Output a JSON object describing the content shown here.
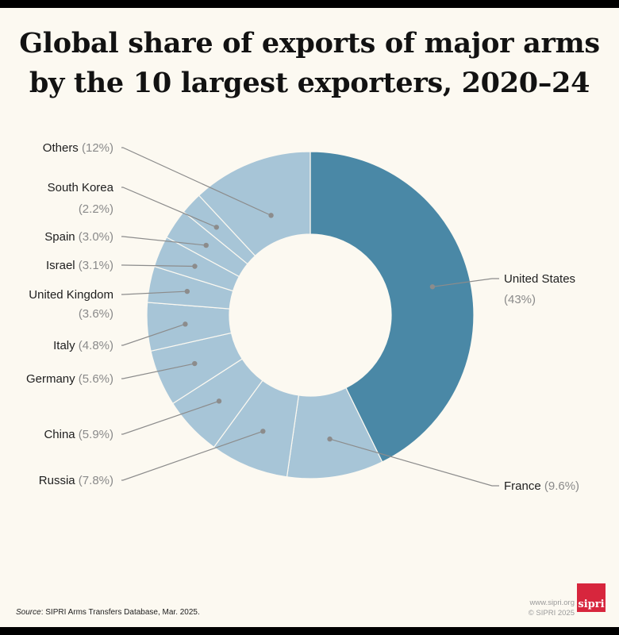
{
  "title_lines": [
    "Global share of exports of major arms",
    "by the 10 largest exporters, 2020–24"
  ],
  "chart_data": {
    "type": "pie",
    "variant": "donut",
    "title": "Global share of exports of major arms by the 10 largest exporters, 2020–24",
    "unit": "%",
    "slices": [
      {
        "name": "United States",
        "value": 43,
        "label": "(43%)"
      },
      {
        "name": "France",
        "value": 9.6,
        "label": "(9.6%)"
      },
      {
        "name": "Russia",
        "value": 7.8,
        "label": "(7.8%)"
      },
      {
        "name": "China",
        "value": 5.9,
        "label": "(5.9%)"
      },
      {
        "name": "Germany",
        "value": 5.6,
        "label": "(5.6%)"
      },
      {
        "name": "Italy",
        "value": 4.8,
        "label": "(4.8%)"
      },
      {
        "name": "United Kingdom",
        "value": 3.6,
        "label": "(3.6%)"
      },
      {
        "name": "Israel",
        "value": 3.1,
        "label": "(3.1%)"
      },
      {
        "name": "Spain",
        "value": 3.0,
        "label": "(3.0%)"
      },
      {
        "name": "South Korea",
        "value": 2.2,
        "label": "(2.2%)"
      },
      {
        "name": "Others",
        "value": 12,
        "label": "(12%)"
      }
    ],
    "colors": {
      "highlight": "#4a88a6",
      "others": "#a7c5d7",
      "separator": "#fcf9f1",
      "leader": "#8c8c8c"
    }
  },
  "source": {
    "prefix": "Source",
    "text": ": SIPRI Arms Transfers Database, Mar. 2025."
  },
  "footer": {
    "site": "www.sipri.org",
    "copyright": "© SIPRI 2025",
    "logo_text": "sipri"
  }
}
